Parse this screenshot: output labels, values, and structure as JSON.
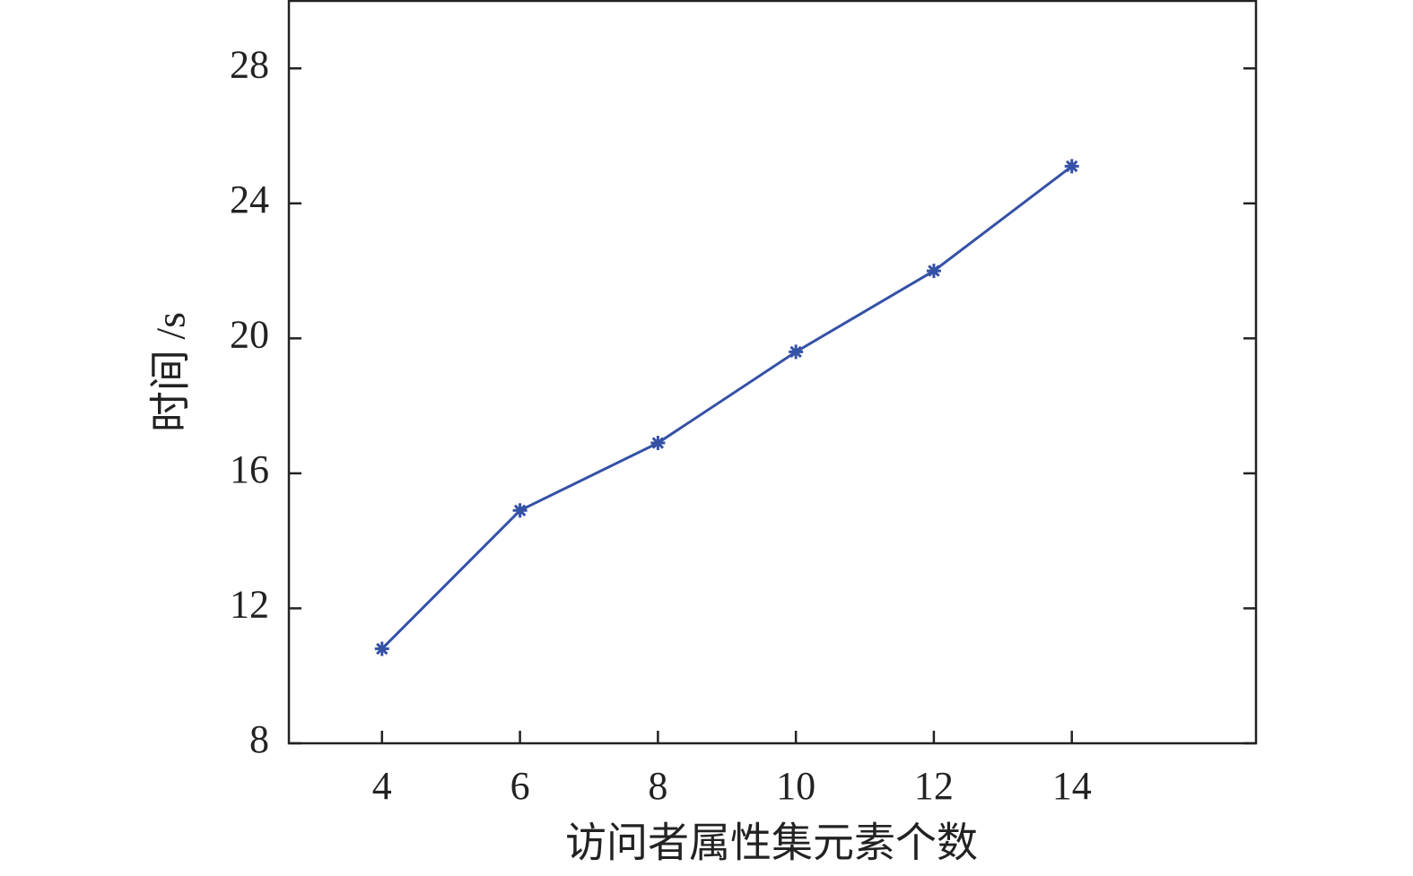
{
  "chart_data": {
    "type": "line",
    "x_label": "访问者属性集元素个数",
    "y_label": "时间 /s",
    "x": [
      4,
      6,
      8,
      10,
      12,
      14
    ],
    "series": [
      {
        "name": "时间",
        "color": "#3451a6",
        "values": [
          10.8,
          14.9,
          16.9,
          19.6,
          22.0,
          25.1
        ]
      }
    ],
    "xlim": [
      2.65,
      16.67
    ],
    "ylim": [
      8,
      30
    ],
    "xticks": [
      4,
      6,
      8,
      10,
      12,
      14
    ],
    "yticks": [
      8,
      12,
      16,
      20,
      24,
      28
    ],
    "grid": false,
    "marker": "asterisk"
  }
}
